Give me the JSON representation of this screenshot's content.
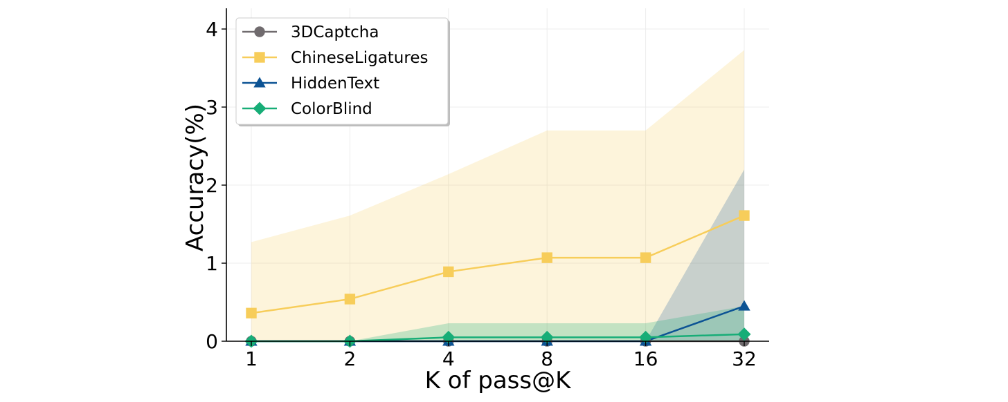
{
  "chart_data": {
    "type": "line",
    "xlabel": "K of pass@K",
    "ylabel": "Accuracy(%)",
    "categories": [
      "1",
      "2",
      "4",
      "8",
      "16",
      "32"
    ],
    "ylim": [
      0,
      4.25
    ],
    "yticks": [
      "0",
      "1",
      "2",
      "3",
      "4"
    ],
    "grid": true,
    "legend_position": "top-left",
    "series": [
      {
        "name": "3DCaptcha",
        "marker": "circle",
        "color": "#706b6e",
        "values": [
          0,
          0,
          0,
          0,
          0,
          0
        ],
        "band_low": [
          0,
          0,
          0,
          0,
          0,
          0
        ],
        "band_high": [
          0,
          0,
          0,
          0,
          0,
          0
        ]
      },
      {
        "name": "ChineseLigatures",
        "marker": "square",
        "color": "#f7cd5a",
        "values": [
          0.36,
          0.54,
          0.89,
          1.07,
          1.07,
          1.61
        ],
        "band_low": [
          0,
          0,
          0,
          0,
          0,
          0
        ],
        "band_high": [
          1.27,
          1.61,
          2.14,
          2.7,
          2.7,
          3.73
        ]
      },
      {
        "name": "HiddenText",
        "marker": "triangle",
        "color": "#0c5394",
        "values": [
          0,
          0,
          0,
          0,
          0,
          0.45
        ],
        "band_low": [
          0,
          0,
          0,
          0,
          0,
          0
        ],
        "band_high": [
          0,
          0,
          0,
          0,
          0,
          2.2
        ]
      },
      {
        "name": "ColorBlind",
        "marker": "diamond",
        "color": "#17ad77",
        "values": [
          0,
          0,
          0.05,
          0.05,
          0.05,
          0.09
        ],
        "band_low": [
          0,
          0,
          0,
          0,
          0,
          0
        ],
        "band_high": [
          0,
          0,
          0.23,
          0.23,
          0.23,
          0.45
        ]
      }
    ]
  }
}
